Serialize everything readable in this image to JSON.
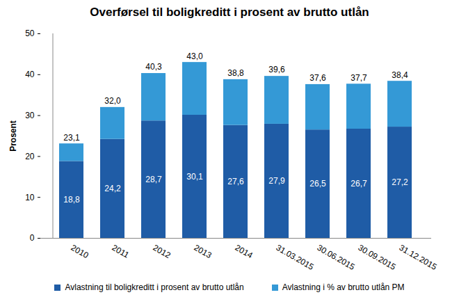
{
  "chart_data": {
    "type": "bar",
    "title": "Overførsel til boligkreditt i prosent av brutto utlån",
    "y_label": "Prosent",
    "categories": [
      "2010",
      "2011",
      "2012",
      "2013",
      "2014",
      "31.03.2015",
      "30.06.2015",
      "30.09.2015",
      "31.12.2015"
    ],
    "series": [
      {
        "name": "Avlastning til boligkreditt i prosent av brutto utlån",
        "color": "#1f5ca6",
        "values": [
          18.8,
          24.2,
          28.7,
          30.1,
          27.6,
          27.9,
          26.5,
          26.7,
          27.2
        ],
        "value_labels": [
          "18,8",
          "24,2",
          "28,7",
          "30,1",
          "27,6",
          "27,9",
          "26,5",
          "26,7",
          "27,2"
        ]
      },
      {
        "name": "Avlastning i % av brutto utlån PM",
        "color": "#3499d6",
        "values": [
          4.3,
          7.8,
          11.6,
          12.9,
          11.2,
          11.7,
          11.1,
          11.0,
          11.2
        ]
      }
    ],
    "totals": [
      23.1,
      32.0,
      40.3,
      43.0,
      38.8,
      39.6,
      37.6,
      37.7,
      38.4
    ],
    "total_labels": [
      "23,1",
      "32,0",
      "40,3",
      "43,0",
      "38,8",
      "39,6",
      "37,6",
      "37,7",
      "38,4"
    ],
    "ylim": [
      0,
      50
    ],
    "yticks": [
      0,
      10,
      20,
      30,
      40,
      50
    ],
    "stacked": true,
    "data_labels": true,
    "grid": false,
    "legend": "bottom"
  }
}
